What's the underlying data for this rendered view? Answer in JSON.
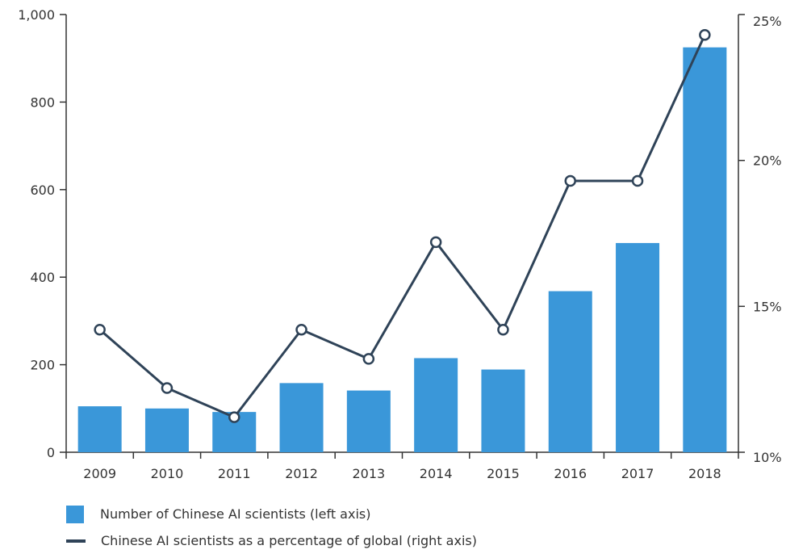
{
  "chart_data": {
    "type": "bar",
    "categories": [
      "2009",
      "2010",
      "2011",
      "2012",
      "2013",
      "2014",
      "2015",
      "2016",
      "2017",
      "2018"
    ],
    "series": [
      {
        "name": "Number of Chinese AI scientists (left axis)",
        "type": "bar",
        "axis": "left",
        "values": [
          105,
          100,
          92,
          158,
          141,
          215,
          189,
          368,
          478,
          925
        ]
      },
      {
        "name": "Chinese AI scientists as a percentage of global (right axis)",
        "type": "line",
        "axis": "right",
        "values": [
          14.2,
          12.2,
          11.2,
          14.2,
          13.2,
          17.2,
          14.2,
          19.3,
          19.3,
          24.3
        ]
      }
    ],
    "y_left": {
      "ylim": [
        0,
        1000
      ],
      "ticks": [
        0,
        200,
        400,
        600,
        800,
        1000
      ],
      "tick_labels": [
        "0",
        "200",
        "400",
        "600",
        "800",
        "1,000"
      ]
    },
    "y_right": {
      "ylim": [
        10,
        25
      ],
      "ticks": [
        10,
        15,
        20,
        25
      ],
      "tick_labels": [
        "10%",
        "15%",
        "20%",
        "25%"
      ]
    },
    "title": "",
    "xlabel": "",
    "ylabel": "",
    "grid": false,
    "legend_position": "bottom-left",
    "colors": {
      "bar": "#3a97d9",
      "line": "#2f4358",
      "axis": "#333333"
    }
  }
}
